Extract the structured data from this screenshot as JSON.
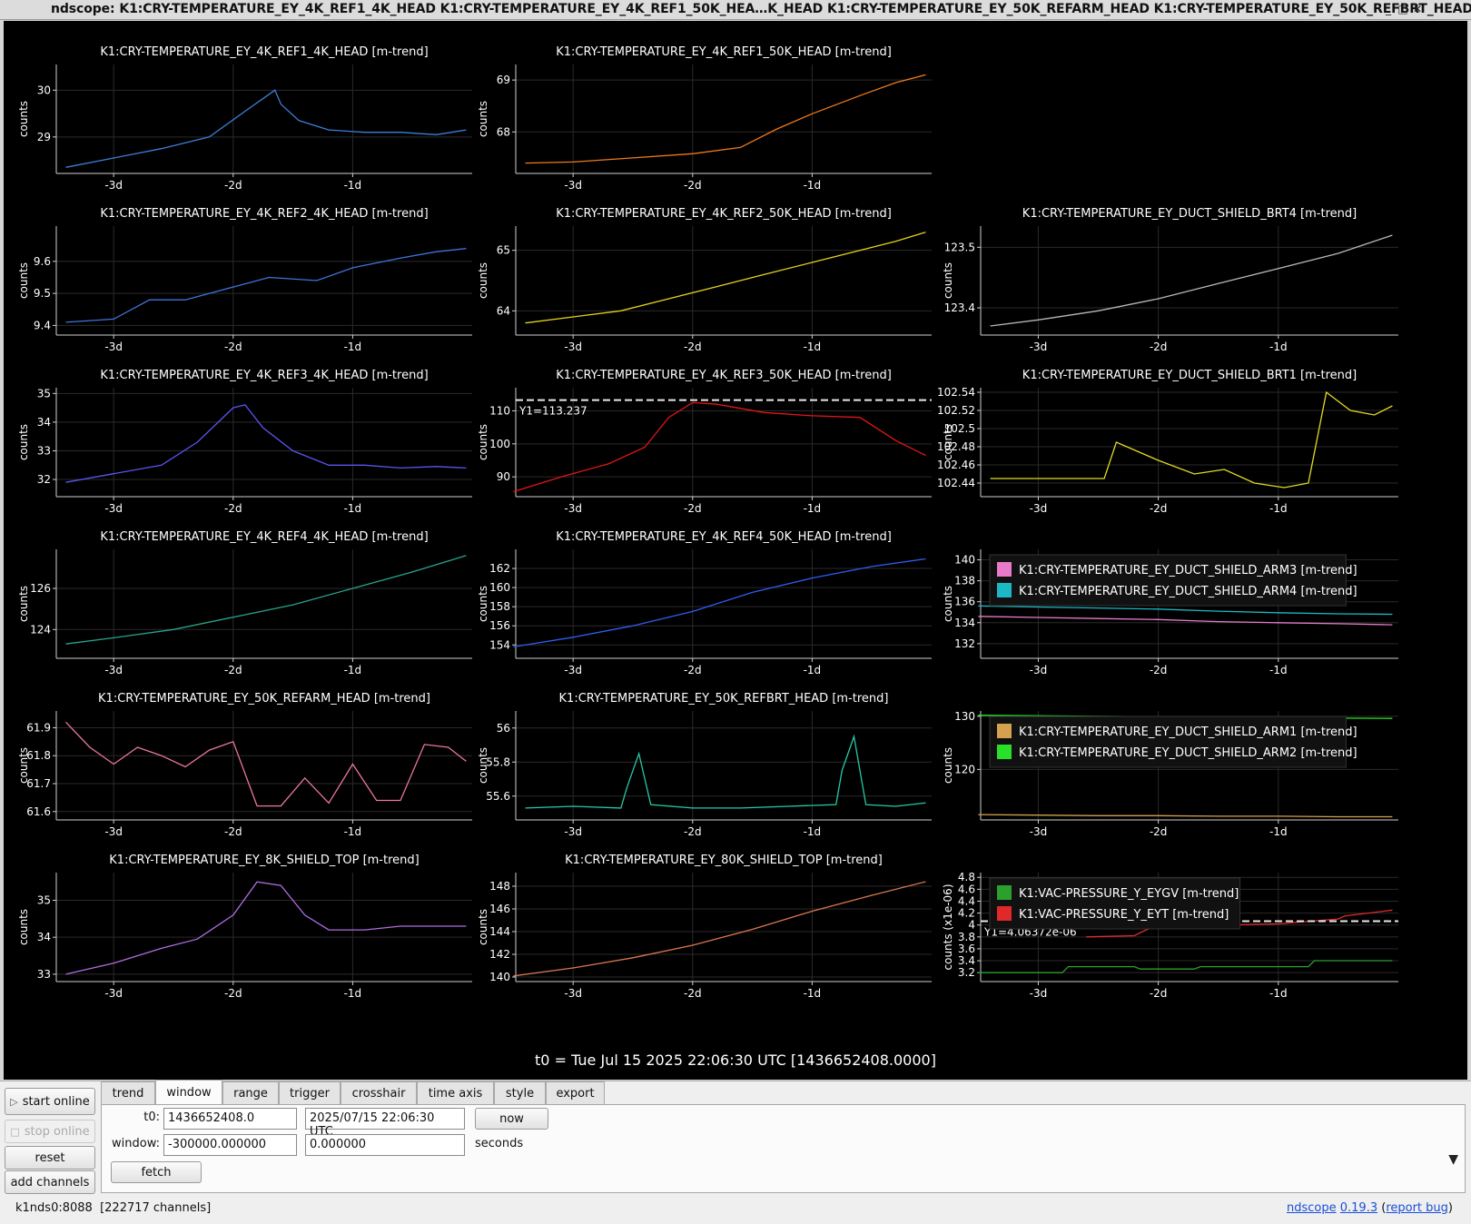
{
  "window": {
    "title": "ndscope: K1:CRY-TEMPERATURE_EY_4K_REF1_4K_HEAD K1:CRY-TEMPERATURE_EY_4K_REF1_50K_HEA…K_HEAD K1:CRY-TEMPERATURE_EY_50K_REFARM_HEAD K1:CRY-TEMPERATURE_EY_50K_REFBRT_HEAD"
  },
  "t0_label": "t0 = Tue Jul 15 2025 22:06:30 UTC [1436652408.0000]",
  "chart_data": [
    {
      "type": "line",
      "title": "K1:CRY-TEMPERATURE_EY_4K_REF1_4K_HEAD [m-trend]",
      "ylabel": "counts",
      "yticks": [
        "30",
        "29"
      ],
      "xticks": [
        "-3d",
        "-2d",
        "-1d"
      ],
      "ylim": [
        28.22,
        30.55
      ],
      "series": [
        {
          "name": "K1:CRY-TEMPERATURE_EY_4K_REF1_4K_HEAD [m-trend]",
          "color": "#3d7fd6",
          "x": [
            -3.4,
            -3.0,
            -2.6,
            -2.2,
            -1.9,
            -1.65,
            -1.6,
            -1.45,
            -1.2,
            -0.9,
            -0.6,
            -0.3,
            -0.05
          ],
          "y": [
            28.35,
            28.55,
            28.75,
            29.0,
            29.55,
            30.0,
            29.7,
            29.35,
            29.15,
            29.1,
            29.1,
            29.05,
            29.15
          ]
        }
      ],
      "hline": null
    },
    {
      "type": "line",
      "title": "K1:CRY-TEMPERATURE_EY_4K_REF1_50K_HEAD [m-trend]",
      "ylabel": "counts",
      "yticks": [
        "69",
        "68"
      ],
      "xticks": [
        "-3d",
        "-2d",
        "-1d"
      ],
      "ylim": [
        67.2,
        69.3
      ],
      "series": [
        {
          "name": "K1:CRY-TEMPERATURE_EY_4K_REF1_50K_HEAD [m-trend]",
          "color": "#ef7a1a",
          "x": [
            -3.4,
            -3.0,
            -2.5,
            -2.0,
            -1.6,
            -1.3,
            -1.0,
            -0.6,
            -0.3,
            -0.05
          ],
          "y": [
            67.4,
            67.42,
            67.5,
            67.58,
            67.7,
            68.05,
            68.35,
            68.7,
            68.95,
            69.1
          ]
        }
      ],
      "hline": null
    },
    null,
    {
      "type": "line",
      "title": "K1:CRY-TEMPERATURE_EY_4K_REF2_4K_HEAD [m-trend]",
      "ylabel": "counts",
      "yticks": [
        "9.6",
        "9.5",
        "9.4"
      ],
      "xticks": [
        "-3d",
        "-2d",
        "-1d"
      ],
      "ylim": [
        9.37,
        9.71
      ],
      "series": [
        {
          "name": "K1:CRY-TEMPERATURE_EY_4K_REF2_4K_HEAD [m-trend]",
          "color": "#3f74dc",
          "x": [
            -3.4,
            -3.0,
            -2.7,
            -2.4,
            -2.0,
            -1.7,
            -1.3,
            -1.0,
            -0.6,
            -0.3,
            -0.05
          ],
          "y": [
            9.41,
            9.42,
            9.48,
            9.48,
            9.52,
            9.55,
            9.54,
            9.58,
            9.61,
            9.63,
            9.64
          ]
        }
      ],
      "hline": null
    },
    {
      "type": "line",
      "title": "K1:CRY-TEMPERATURE_EY_4K_REF2_50K_HEAD [m-trend]",
      "ylabel": "counts",
      "yticks": [
        "65",
        "64"
      ],
      "xticks": [
        "-3d",
        "-2d",
        "-1d"
      ],
      "ylim": [
        63.6,
        65.4
      ],
      "series": [
        {
          "name": "K1:CRY-TEMPERATURE_EY_4K_REF2_50K_HEAD [m-trend]",
          "color": "#e3d21e",
          "x": [
            -3.4,
            -3.0,
            -2.6,
            -2.2,
            -1.8,
            -1.4,
            -1.0,
            -0.6,
            -0.3,
            -0.05
          ],
          "y": [
            63.8,
            63.9,
            64.0,
            64.2,
            64.4,
            64.6,
            64.8,
            65.0,
            65.15,
            65.3
          ]
        }
      ],
      "hline": null
    },
    {
      "type": "line",
      "title": "K1:CRY-TEMPERATURE_EY_DUCT_SHIELD_BRT4 [m-trend]",
      "ylabel": "counts",
      "yticks": [
        "123.5",
        "123.4"
      ],
      "xticks": [
        "-3d",
        "-2d",
        "-1d"
      ],
      "ylim": [
        123.355,
        123.535
      ],
      "series": [
        {
          "name": "K1:CRY-TEMPERATURE_EY_DUCT_SHIELD_BRT4 [m-trend]",
          "color": "#b8b8b8",
          "x": [
            -3.4,
            -3.0,
            -2.5,
            -2.0,
            -1.5,
            -1.0,
            -0.5,
            -0.05
          ],
          "y": [
            123.37,
            123.38,
            123.395,
            123.415,
            123.44,
            123.465,
            123.49,
            123.52
          ]
        }
      ],
      "hline": null
    },
    {
      "type": "line",
      "title": "K1:CRY-TEMPERATURE_EY_4K_REF3_4K_HEAD [m-trend]",
      "ylabel": "counts",
      "yticks": [
        "35",
        "34",
        "33",
        "32"
      ],
      "xticks": [
        "-3d",
        "-2d",
        "-1d"
      ],
      "ylim": [
        31.4,
        35.2
      ],
      "series": [
        {
          "name": "K1:CRY-TEMPERATURE_EY_4K_REF3_4K_HEAD [m-trend]",
          "color": "#5a55f0",
          "x": [
            -3.4,
            -3.0,
            -2.6,
            -2.3,
            -2.0,
            -1.9,
            -1.75,
            -1.5,
            -1.2,
            -0.9,
            -0.6,
            -0.3,
            -0.05
          ],
          "y": [
            31.9,
            32.2,
            32.5,
            33.3,
            34.5,
            34.6,
            33.8,
            33.0,
            32.5,
            32.5,
            32.4,
            32.45,
            32.4
          ]
        }
      ],
      "hline": null
    },
    {
      "type": "line",
      "title": "K1:CRY-TEMPERATURE_EY_4K_REF3_50K_HEAD [m-trend]",
      "ylabel": "counts",
      "yticks": [
        "110",
        "100",
        "90"
      ],
      "xticks": [
        "-3d",
        "-2d",
        "-1d"
      ],
      "ylim": [
        84.0,
        117.0
      ],
      "series": [
        {
          "name": "K1:CRY-TEMPERATURE_EY_4K_REF3_50K_HEAD [m-trend]",
          "color": "#e31616",
          "x": [
            -3.5,
            -3.1,
            -2.7,
            -2.4,
            -2.2,
            -2.0,
            -1.8,
            -1.4,
            -1.0,
            -0.6,
            -0.3,
            -0.05
          ],
          "y": [
            85.5,
            90.0,
            94.0,
            99.0,
            108.0,
            112.5,
            112.0,
            109.5,
            108.5,
            108.0,
            101.0,
            96.5
          ]
        }
      ],
      "hline": {
        "value": 113.237,
        "label": "Y1=113.237"
      }
    },
    {
      "type": "line",
      "title": "K1:CRY-TEMPERATURE_EY_DUCT_SHIELD_BRT1 [m-trend]",
      "ylabel": "counts",
      "yticks": [
        "102.54",
        "102.52",
        "102.5",
        "102.48",
        "102.46",
        "102.44"
      ],
      "xticks": [
        "-3d",
        "-2d",
        "-1d"
      ],
      "ylim": [
        102.425,
        102.545
      ],
      "series": [
        {
          "name": "K1:CRY-TEMPERATURE_EY_DUCT_SHIELD_BRT1 [m-trend]",
          "color": "#e2dc24",
          "x": [
            -3.4,
            -3.0,
            -2.7,
            -2.45,
            -2.35,
            -2.0,
            -1.7,
            -1.45,
            -1.2,
            -0.95,
            -0.75,
            -0.6,
            -0.4,
            -0.2,
            -0.05
          ],
          "y": [
            102.445,
            102.445,
            102.445,
            102.445,
            102.485,
            102.465,
            102.45,
            102.455,
            102.44,
            102.435,
            102.44,
            102.54,
            102.52,
            102.515,
            102.525
          ]
        }
      ],
      "hline": null
    },
    {
      "type": "line",
      "title": "K1:CRY-TEMPERATURE_EY_4K_REF4_4K_HEAD [m-trend]",
      "ylabel": "counts",
      "yticks": [
        "126",
        "124"
      ],
      "xticks": [
        "-3d",
        "-2d",
        "-1d"
      ],
      "ylim": [
        122.6,
        127.9
      ],
      "series": [
        {
          "name": "K1:CRY-TEMPERATURE_EY_4K_REF4_4K_HEAD [m-trend]",
          "color": "#28a48a",
          "x": [
            -3.4,
            -3.0,
            -2.5,
            -2.0,
            -1.5,
            -1.0,
            -0.5,
            -0.05
          ],
          "y": [
            123.3,
            123.6,
            124.0,
            124.6,
            125.2,
            126.0,
            126.8,
            127.6
          ]
        }
      ],
      "hline": null
    },
    {
      "type": "line",
      "title": "K1:CRY-TEMPERATURE_EY_4K_REF4_50K_HEAD [m-trend]",
      "ylabel": "counts",
      "yticks": [
        "162",
        "160",
        "158",
        "156",
        "154"
      ],
      "xticks": [
        "-3d",
        "-2d",
        "-1d"
      ],
      "ylim": [
        152.6,
        164.0
      ],
      "series": [
        {
          "name": "K1:CRY-TEMPERATURE_EY_4K_REF4_50K_HEAD [m-trend]",
          "color": "#2e5ef0",
          "x": [
            -3.5,
            -3.0,
            -2.5,
            -2.0,
            -1.5,
            -1.0,
            -0.5,
            -0.05
          ],
          "y": [
            153.8,
            154.8,
            156.0,
            157.5,
            159.5,
            161.0,
            162.2,
            163.0
          ]
        }
      ],
      "hline": null
    },
    {
      "type": "line",
      "title": "",
      "ylabel": "counts",
      "yticks": [
        "140",
        "138",
        "136",
        "134",
        "132"
      ],
      "xticks": [
        "-3d",
        "-2d",
        "-1d"
      ],
      "ylim": [
        130.6,
        141.0
      ],
      "legend": "top-left",
      "series": [
        {
          "name": "K1:CRY-TEMPERATURE_EY_DUCT_SHIELD_ARM3 [m-trend]",
          "color": "#e77bc9",
          "x": [
            -3.5,
            -3.0,
            -2.5,
            -2.0,
            -1.5,
            -1.0,
            -0.5,
            -0.05
          ],
          "y": [
            134.6,
            134.5,
            134.4,
            134.3,
            134.1,
            134.0,
            133.9,
            133.8
          ]
        },
        {
          "name": "K1:CRY-TEMPERATURE_EY_DUCT_SHIELD_ARM4 [m-trend]",
          "color": "#1cb8c6",
          "x": [
            -3.5,
            -3.0,
            -2.5,
            -2.0,
            -1.5,
            -1.0,
            -0.5,
            -0.05
          ],
          "y": [
            135.6,
            135.5,
            135.4,
            135.3,
            135.1,
            134.95,
            134.85,
            134.8
          ]
        }
      ],
      "hline": null
    },
    {
      "type": "line",
      "title": "K1:CRY-TEMPERATURE_EY_50K_REFARM_HEAD [m-trend]",
      "ylabel": "counts",
      "yticks": [
        "61.9",
        "61.8",
        "61.7",
        "61.6"
      ],
      "xticks": [
        "-3d",
        "-2d",
        "-1d"
      ],
      "ylim": [
        61.57,
        61.96
      ],
      "series": [
        {
          "name": "K1:CRY-TEMPERATURE_EY_50K_REFARM_HEAD [m-trend]",
          "color": "#ec7897",
          "x": [
            -3.4,
            -3.2,
            -3.0,
            -2.8,
            -2.6,
            -2.4,
            -2.2,
            -2.0,
            -1.8,
            -1.6,
            -1.4,
            -1.2,
            -1.0,
            -0.8,
            -0.6,
            -0.4,
            -0.2,
            -0.05
          ],
          "y": [
            61.92,
            61.83,
            61.77,
            61.83,
            61.8,
            61.76,
            61.82,
            61.85,
            61.62,
            61.62,
            61.72,
            61.63,
            61.77,
            61.64,
            61.64,
            61.84,
            61.83,
            61.78
          ]
        }
      ],
      "hline": null
    },
    {
      "type": "line",
      "title": "K1:CRY-TEMPERATURE_EY_50K_REFBRT_HEAD [m-trend]",
      "ylabel": "counts",
      "yticks": [
        "56",
        "55.8",
        "55.6"
      ],
      "xticks": [
        "-3d",
        "-2d",
        "-1d"
      ],
      "ylim": [
        55.46,
        56.1
      ],
      "series": [
        {
          "name": "K1:CRY-TEMPERATURE_EY_50K_REFBRT_HEAD [m-trend]",
          "color": "#27c9a6",
          "x": [
            -3.4,
            -3.0,
            -2.6,
            -2.55,
            -2.45,
            -2.35,
            -2.0,
            -1.6,
            -1.2,
            -0.8,
            -0.75,
            -0.65,
            -0.55,
            -0.3,
            -0.05
          ],
          "y": [
            55.53,
            55.54,
            55.53,
            55.65,
            55.85,
            55.55,
            55.53,
            55.53,
            55.54,
            55.55,
            55.75,
            55.95,
            55.55,
            55.54,
            55.56
          ]
        }
      ],
      "hline": null
    },
    {
      "type": "line",
      "title": "",
      "ylabel": "counts",
      "yticks": [
        "130",
        "120"
      ],
      "xticks": [
        "-3d",
        "-2d",
        "-1d"
      ],
      "ylim": [
        110.5,
        131.0
      ],
      "legend": "top-left",
      "series": [
        {
          "name": "K1:CRY-TEMPERATURE_EY_DUCT_SHIELD_ARM1 [m-trend]",
          "color": "#d6a14e",
          "x": [
            -3.5,
            -3.0,
            -2.5,
            -2.0,
            -1.5,
            -1.0,
            -0.5,
            -0.05
          ],
          "y": [
            111.5,
            111.4,
            111.3,
            111.3,
            111.2,
            111.2,
            111.1,
            111.1
          ]
        },
        {
          "name": "K1:CRY-TEMPERATURE_EY_DUCT_SHIELD_ARM2 [m-trend]",
          "color": "#28e028",
          "x": [
            -3.5,
            -3.0,
            -2.5,
            -2.0,
            -1.5,
            -1.0,
            -0.5,
            -0.05
          ],
          "y": [
            130.2,
            130.1,
            130.0,
            129.9,
            129.8,
            129.7,
            129.65,
            129.6
          ]
        }
      ],
      "hline": null
    },
    {
      "type": "line",
      "title": "K1:CRY-TEMPERATURE_EY_8K_SHIELD_TOP [m-trend]",
      "ylabel": "counts",
      "yticks": [
        "35",
        "34",
        "33"
      ],
      "xticks": [
        "-3d",
        "-2d",
        "-1d"
      ],
      "ylim": [
        32.8,
        35.75
      ],
      "series": [
        {
          "name": "K1:CRY-TEMPERATURE_EY_8K_SHIELD_TOP [m-trend]",
          "color": "#b06ee0",
          "x": [
            -3.4,
            -3.0,
            -2.6,
            -2.3,
            -2.0,
            -1.8,
            -1.6,
            -1.4,
            -1.2,
            -0.9,
            -0.6,
            -0.3,
            -0.05
          ],
          "y": [
            33.0,
            33.3,
            33.7,
            33.95,
            34.6,
            35.5,
            35.4,
            34.6,
            34.2,
            34.2,
            34.3,
            34.3,
            34.3
          ]
        }
      ],
      "hline": null
    },
    {
      "type": "line",
      "title": "K1:CRY-TEMPERATURE_EY_80K_SHIELD_TOP [m-trend]",
      "ylabel": "counts",
      "yticks": [
        "148",
        "146",
        "144",
        "142",
        "140"
      ],
      "xticks": [
        "-3d",
        "-2d",
        "-1d"
      ],
      "ylim": [
        139.6,
        149.2
      ],
      "series": [
        {
          "name": "K1:CRY-TEMPERATURE_EY_80K_SHIELD_TOP [m-trend]",
          "color": "#d8784e",
          "x": [
            -3.5,
            -3.0,
            -2.5,
            -2.0,
            -1.5,
            -1.0,
            -0.5,
            -0.05
          ],
          "y": [
            140.1,
            140.8,
            141.7,
            142.8,
            144.2,
            145.8,
            147.2,
            148.4
          ]
        }
      ],
      "hline": null
    },
    {
      "type": "line",
      "title": "",
      "ylabel": "counts (x1e-06)",
      "yticks": [
        "4.8",
        "4.6",
        "4.4",
        "4.2",
        "4",
        "3.8",
        "3.6",
        "3.4",
        "3.2"
      ],
      "xticks": [
        "-3d",
        "-2d",
        "-1d"
      ],
      "ylim": [
        3.05,
        4.88
      ],
      "legend": "top-left",
      "series": [
        {
          "name": "K1:VAC-PRESSURE_Y_EYGV [m-trend]",
          "color": "#2ca02c",
          "x": [
            -3.5,
            -2.8,
            -2.75,
            -2.2,
            -2.15,
            -1.7,
            -1.65,
            -0.75,
            -0.7,
            -0.05
          ],
          "y": [
            3.2,
            3.2,
            3.3,
            3.3,
            3.26,
            3.26,
            3.3,
            3.3,
            3.4,
            3.4
          ]
        },
        {
          "name": "K1:VAC-PRESSURE_Y_EYT [m-trend]",
          "color": "#e02a2a",
          "x": [
            -2.6,
            -2.2,
            -2.1,
            -1.9,
            -1.8,
            -1.4,
            -1.0,
            -0.5,
            -0.45,
            -0.05
          ],
          "y": [
            3.8,
            3.82,
            3.92,
            4.05,
            4.0,
            4.0,
            4.02,
            4.1,
            4.15,
            4.25
          ]
        }
      ],
      "hline": {
        "value": 4.06372,
        "label": "Y1=4.06372e-06"
      }
    }
  ],
  "controls": {
    "left_buttons": [
      {
        "label": "start online",
        "icon": "play-icon",
        "enabled": true
      },
      {
        "label": "stop online",
        "icon": "stop-icon",
        "enabled": false
      },
      {
        "label": "reset",
        "enabled": true
      },
      {
        "label": "add channels",
        "enabled": true
      }
    ],
    "tabs": [
      "trend",
      "window",
      "range",
      "trigger",
      "crosshair",
      "time axis",
      "style",
      "export"
    ],
    "active_tab": "window",
    "t0_label": "t0:",
    "t0_gps": "1436652408.0",
    "t0_utc": "2025/07/15 22:06:30 UTC",
    "now_label": "now",
    "window_label": "window:",
    "window_start": "-300000.000000",
    "window_end": "0.000000",
    "window_units": "seconds",
    "fetch_label": "fetch"
  },
  "status": {
    "server": "k1nds0:8088",
    "channels": "[222717 channels]",
    "app_name": "ndscope",
    "version": "0.19.3",
    "report_bug": "report bug"
  }
}
